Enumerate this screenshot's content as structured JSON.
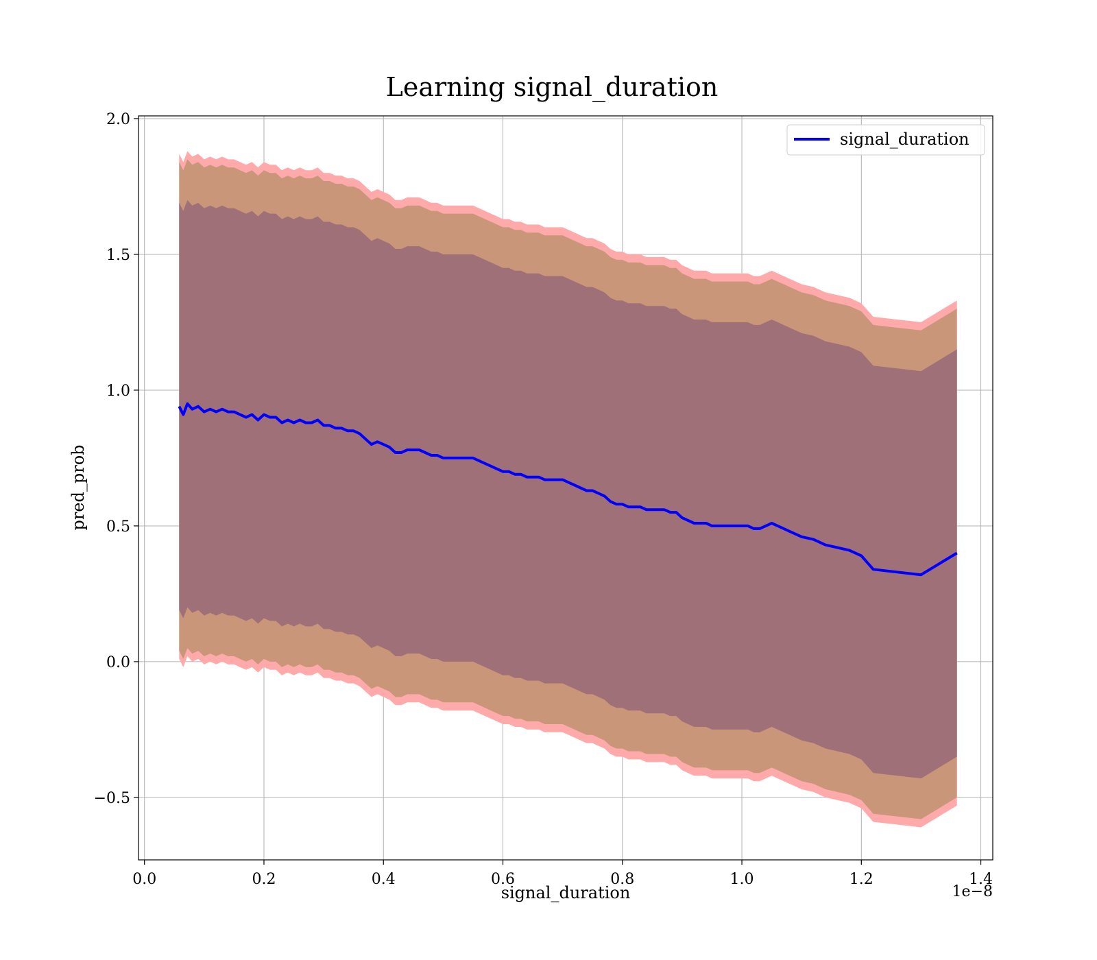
{
  "chart_data": {
    "type": "line",
    "title": "Learning signal_duration",
    "xlabel": "signal_duration",
    "ylabel": "pred_prob",
    "x_offset_label": "1e−8",
    "xlim": [
      -0.01,
      1.42
    ],
    "ylim": [
      -0.73,
      2.01
    ],
    "x_ticks": [
      {
        "value": 0.0,
        "label": "0.0"
      },
      {
        "value": 0.2,
        "label": "0.2"
      },
      {
        "value": 0.4,
        "label": "0.4"
      },
      {
        "value": 0.6,
        "label": "0.6"
      },
      {
        "value": 0.8,
        "label": "0.8"
      },
      {
        "value": 1.0,
        "label": "1.0"
      },
      {
        "value": 1.2,
        "label": "1.2"
      },
      {
        "value": 1.4,
        "label": "1.4"
      }
    ],
    "y_ticks": [
      {
        "value": -0.5,
        "label": "−0.5"
      },
      {
        "value": 0.0,
        "label": "0.0"
      },
      {
        "value": 0.5,
        "label": "0.5"
      },
      {
        "value": 1.0,
        "label": "1.0"
      },
      {
        "value": 1.5,
        "label": "1.5"
      },
      {
        "value": 2.0,
        "label": "2.0"
      }
    ],
    "grid": true,
    "legend_position": "top-right",
    "colors": {
      "line": "#0000ff",
      "band_outer": "#ffaaaa",
      "band_middle": "#c9967a",
      "band_inner": "#a07079",
      "grid": "#b0b0b0"
    },
    "series": [
      {
        "name": "signal_duration",
        "x": [
          0.058,
          0.065,
          0.072,
          0.08,
          0.09,
          0.1,
          0.11,
          0.12,
          0.13,
          0.14,
          0.15,
          0.16,
          0.17,
          0.18,
          0.19,
          0.2,
          0.21,
          0.22,
          0.23,
          0.24,
          0.25,
          0.26,
          0.27,
          0.28,
          0.29,
          0.3,
          0.31,
          0.32,
          0.33,
          0.34,
          0.35,
          0.36,
          0.37,
          0.38,
          0.39,
          0.4,
          0.41,
          0.42,
          0.43,
          0.44,
          0.45,
          0.46,
          0.47,
          0.48,
          0.49,
          0.5,
          0.51,
          0.52,
          0.53,
          0.54,
          0.55,
          0.56,
          0.57,
          0.58,
          0.59,
          0.6,
          0.61,
          0.62,
          0.63,
          0.64,
          0.65,
          0.66,
          0.67,
          0.68,
          0.69,
          0.7,
          0.71,
          0.72,
          0.73,
          0.74,
          0.75,
          0.76,
          0.77,
          0.78,
          0.79,
          0.8,
          0.81,
          0.82,
          0.83,
          0.84,
          0.85,
          0.86,
          0.87,
          0.88,
          0.89,
          0.9,
          0.91,
          0.92,
          0.93,
          0.94,
          0.95,
          0.96,
          0.97,
          0.98,
          0.99,
          1.0,
          1.01,
          1.02,
          1.03,
          1.04,
          1.05,
          1.06,
          1.08,
          1.1,
          1.12,
          1.14,
          1.16,
          1.18,
          1.2,
          1.22,
          1.26,
          1.3,
          1.36
        ],
        "y": [
          0.94,
          0.91,
          0.95,
          0.93,
          0.94,
          0.92,
          0.93,
          0.92,
          0.93,
          0.92,
          0.92,
          0.91,
          0.9,
          0.91,
          0.89,
          0.91,
          0.9,
          0.9,
          0.88,
          0.89,
          0.88,
          0.89,
          0.88,
          0.88,
          0.89,
          0.87,
          0.87,
          0.86,
          0.86,
          0.85,
          0.85,
          0.84,
          0.82,
          0.8,
          0.81,
          0.8,
          0.79,
          0.77,
          0.77,
          0.78,
          0.78,
          0.78,
          0.77,
          0.76,
          0.76,
          0.75,
          0.75,
          0.75,
          0.75,
          0.75,
          0.75,
          0.74,
          0.73,
          0.72,
          0.71,
          0.7,
          0.7,
          0.69,
          0.69,
          0.68,
          0.68,
          0.68,
          0.67,
          0.67,
          0.67,
          0.67,
          0.66,
          0.65,
          0.64,
          0.63,
          0.63,
          0.62,
          0.61,
          0.59,
          0.58,
          0.58,
          0.57,
          0.57,
          0.57,
          0.56,
          0.56,
          0.56,
          0.56,
          0.55,
          0.55,
          0.53,
          0.52,
          0.51,
          0.51,
          0.51,
          0.5,
          0.5,
          0.5,
          0.5,
          0.5,
          0.5,
          0.5,
          0.49,
          0.49,
          0.5,
          0.51,
          0.5,
          0.48,
          0.46,
          0.45,
          0.43,
          0.42,
          0.41,
          0.39,
          0.34,
          0.33,
          0.32,
          0.4
        ]
      }
    ],
    "bands": [
      {
        "role": "outer",
        "upper_offset": 0.93,
        "lower_offset": 0.93
      },
      {
        "role": "middle",
        "upper_offset": 0.9,
        "lower_offset": 0.9
      },
      {
        "role": "inner",
        "upper_offset": 0.75,
        "lower_offset": 0.75
      }
    ]
  }
}
